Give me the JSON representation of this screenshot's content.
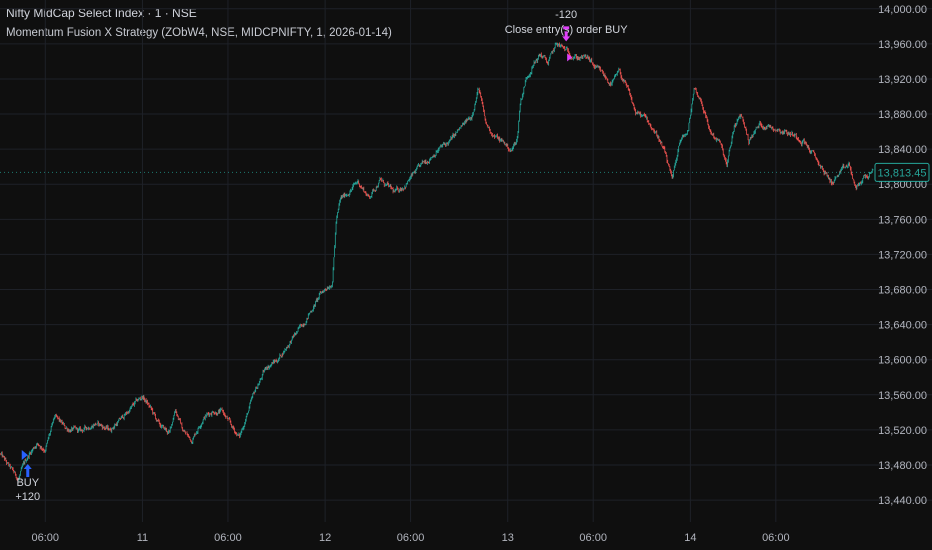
{
  "header": {
    "symbol_title": "Nifty MidCap Select Index · 1 · NSE",
    "strategy_title": "Momentum Fusion X Strategy  (ZObW4, NSE, MIDCPNIFTY, 1, 2026-01-14)"
  },
  "colors": {
    "background": "#0f0f0f",
    "grid": "#1e2128",
    "up": "#26a69a",
    "down": "#ef5350",
    "axis_text": "#b2b5be",
    "price_tag": "#26a69a",
    "buy_marker": "#2962ff",
    "close_marker": "#e040fb"
  },
  "chart_data": {
    "type": "candlestick",
    "y_axis": {
      "ticks": [
        "14,000.00",
        "13,960.00",
        "13,920.00",
        "13,880.00",
        "13,840.00",
        "13,800.00",
        "13,760.00",
        "13,720.00",
        "13,680.00",
        "13,640.00",
        "13,600.00",
        "13,560.00",
        "13,520.00",
        "13,480.00",
        "13,440.00"
      ],
      "tick_values": [
        14000,
        13960,
        13920,
        13880,
        13840,
        13800,
        13760,
        13720,
        13680,
        13640,
        13600,
        13560,
        13520,
        13480,
        13440
      ],
      "range": [
        13415,
        14010
      ]
    },
    "x_axis": {
      "ticks": [
        "06:00",
        "11",
        "06:00",
        "12",
        "06:00",
        "13",
        "06:00",
        "14",
        "06:00"
      ],
      "tick_index": [
        62,
        195,
        312,
        445,
        562,
        695,
        812,
        945,
        1062
      ]
    },
    "x_range": [
      0,
      1195
    ],
    "price_path": [
      [
        0,
        13493
      ],
      [
        12,
        13478
      ],
      [
        25,
        13464
      ],
      [
        38,
        13490
      ],
      [
        50,
        13505
      ],
      [
        62,
        13498
      ],
      [
        75,
        13534
      ],
      [
        90,
        13522
      ],
      [
        110,
        13518
      ],
      [
        130,
        13528
      ],
      [
        150,
        13520
      ],
      [
        170,
        13536
      ],
      [
        185,
        13550
      ],
      [
        195,
        13558
      ],
      [
        205,
        13546
      ],
      [
        218,
        13525
      ],
      [
        232,
        13516
      ],
      [
        240,
        13545
      ],
      [
        250,
        13520
      ],
      [
        262,
        13508
      ],
      [
        278,
        13534
      ],
      [
        292,
        13542
      ],
      [
        305,
        13540
      ],
      [
        318,
        13522
      ],
      [
        328,
        13512
      ],
      [
        335,
        13530
      ],
      [
        350,
        13566
      ],
      [
        365,
        13592
      ],
      [
        380,
        13600
      ],
      [
        395,
        13618
      ],
      [
        410,
        13635
      ],
      [
        425,
        13655
      ],
      [
        440,
        13676
      ],
      [
        455,
        13690
      ],
      [
        460,
        13757
      ],
      [
        466,
        13782
      ],
      [
        478,
        13792
      ],
      [
        490,
        13803
      ],
      [
        505,
        13785
      ],
      [
        520,
        13805
      ],
      [
        540,
        13790
      ],
      [
        555,
        13800
      ],
      [
        570,
        13815
      ],
      [
        585,
        13828
      ],
      [
        600,
        13840
      ],
      [
        615,
        13848
      ],
      [
        630,
        13863
      ],
      [
        645,
        13877
      ],
      [
        655,
        13910
      ],
      [
        665,
        13868
      ],
      [
        678,
        13854
      ],
      [
        690,
        13847
      ],
      [
        700,
        13838
      ],
      [
        708,
        13852
      ],
      [
        712,
        13893
      ],
      [
        720,
        13920
      ],
      [
        728,
        13934
      ],
      [
        740,
        13948
      ],
      [
        750,
        13938
      ],
      [
        762,
        13960
      ],
      [
        775,
        13952
      ],
      [
        790,
        13945
      ],
      [
        805,
        13943
      ],
      [
        815,
        13932
      ],
      [
        825,
        13925
      ],
      [
        837,
        13914
      ],
      [
        848,
        13928
      ],
      [
        860,
        13905
      ],
      [
        870,
        13882
      ],
      [
        885,
        13874
      ],
      [
        900,
        13856
      ],
      [
        912,
        13830
      ],
      [
        920,
        13802
      ],
      [
        930,
        13848
      ],
      [
        942,
        13860
      ],
      [
        950,
        13910
      ],
      [
        960,
        13895
      ],
      [
        972,
        13860
      ],
      [
        985,
        13848
      ],
      [
        995,
        13820
      ],
      [
        1005,
        13866
      ],
      [
        1015,
        13878
      ],
      [
        1025,
        13850
      ],
      [
        1040,
        13868
      ],
      [
        1055,
        13866
      ],
      [
        1070,
        13862
      ],
      [
        1085,
        13857
      ],
      [
        1100,
        13850
      ],
      [
        1112,
        13835
      ],
      [
        1125,
        13818
      ],
      [
        1138,
        13802
      ],
      [
        1150,
        13812
      ],
      [
        1162,
        13822
      ],
      [
        1172,
        13793
      ],
      [
        1182,
        13808
      ],
      [
        1195,
        13813
      ]
    ],
    "last_price": "13,813.45",
    "last_price_value": 13813.45,
    "annotations": [
      {
        "index": 38,
        "price": 13472,
        "label_top": "BUY",
        "label_bottom": "+120",
        "kind": "entry"
      },
      {
        "index": 775,
        "price": 13956,
        "label_top": "-120",
        "label_bottom": "Close entry(s) order BUY",
        "kind": "exit"
      }
    ]
  }
}
